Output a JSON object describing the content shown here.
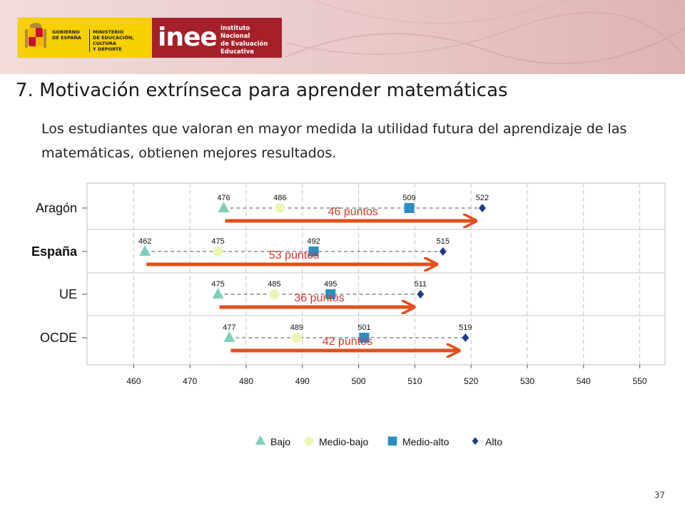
{
  "header": {
    "gov_line1": "GOBIERNO\nDE ESPAÑA",
    "gov_line2": "MINISTERIO\nDE EDUCACIÓN, CULTURA\nY DEPORTE",
    "inee_word": "inee",
    "inee_text": "Instituto Nacional\nde Evaluación\nEducativa"
  },
  "title": "7. Motivación extrínseca para aprender matemáticas",
  "subtitle": "Los estudiantes que valoran en mayor medida la utilidad futura del aprendizaje de las matemáticas, obtienen mejores resultados.",
  "slide_number": "37",
  "colors": {
    "bajo": "#7fcfbc",
    "medio_bajo": "#eef5b4",
    "medio_alto": "#2b8ec4",
    "alto": "#1f3c8a",
    "arrow": "#e0501e",
    "arrow_label": "#d8342a"
  },
  "chart_data": {
    "type": "scatter",
    "categories": [
      "Aragón",
      "España",
      "UE",
      "OCDE"
    ],
    "bold_categories": [
      "España"
    ],
    "xlim": [
      455,
      555
    ],
    "xticks": [
      460,
      470,
      480,
      490,
      500,
      510,
      520,
      530,
      540,
      550
    ],
    "grid": true,
    "legend_position": "bottom",
    "series": [
      {
        "name": "Bajo",
        "marker": "triangle",
        "values": [
          476,
          462,
          475,
          477
        ]
      },
      {
        "name": "Medio-bajo",
        "marker": "circle",
        "values": [
          486,
          475,
          485,
          489
        ]
      },
      {
        "name": "Medio-alto",
        "marker": "square",
        "values": [
          509,
          492,
          495,
          501
        ]
      },
      {
        "name": "Alto",
        "marker": "diamond",
        "values": [
          522,
          515,
          511,
          519
        ]
      }
    ],
    "annotations": [
      "46 puntos",
      "53 puntos",
      "36 puntos",
      "42 puntos"
    ]
  }
}
